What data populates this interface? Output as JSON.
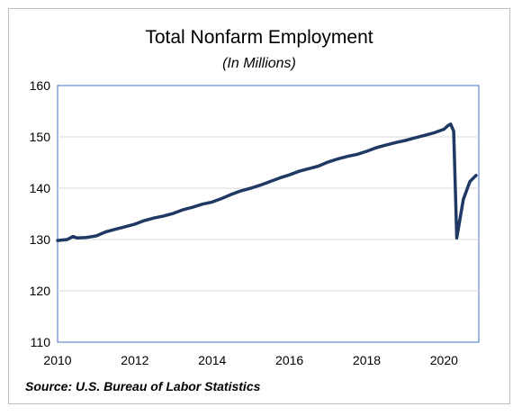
{
  "chart_data": {
    "type": "line",
    "title": "Total Nonfarm Employment",
    "subtitle": "(In Millions)",
    "xlabel": "",
    "ylabel": "",
    "xlim": [
      2010,
      2020.9
    ],
    "ylim": [
      110,
      160
    ],
    "x_ticks": [
      2010,
      2012,
      2014,
      2016,
      2018,
      2020
    ],
    "y_ticks": [
      110,
      120,
      130,
      140,
      150,
      160
    ],
    "grid": "horizontal",
    "line_color": "#203864",
    "series": [
      {
        "x": [
          2010.0,
          2010.25,
          2010.4,
          2010.5,
          2010.75,
          2011.0,
          2011.25,
          2011.5,
          2011.75,
          2012.0,
          2012.25,
          2012.5,
          2012.75,
          2013.0,
          2013.25,
          2013.5,
          2013.75,
          2014.0,
          2014.25,
          2014.5,
          2014.75,
          2015.0,
          2015.25,
          2015.5,
          2015.75,
          2016.0,
          2016.25,
          2016.5,
          2016.75,
          2017.0,
          2017.25,
          2017.5,
          2017.75,
          2018.0,
          2018.25,
          2018.5,
          2018.75,
          2019.0,
          2019.25,
          2019.5,
          2019.75,
          2020.0,
          2020.1,
          2020.17,
          2020.25,
          2020.33,
          2020.5,
          2020.67,
          2020.83
        ],
        "y": [
          129.8,
          130.0,
          130.6,
          130.3,
          130.4,
          130.7,
          131.5,
          132.0,
          132.5,
          133.0,
          133.7,
          134.2,
          134.6,
          135.1,
          135.8,
          136.3,
          136.9,
          137.3,
          138.0,
          138.8,
          139.5,
          140.0,
          140.6,
          141.3,
          142.0,
          142.6,
          143.3,
          143.8,
          144.3,
          145.1,
          145.7,
          146.2,
          146.6,
          147.2,
          147.9,
          148.4,
          148.9,
          149.3,
          149.8,
          150.3,
          150.8,
          151.5,
          152.2,
          152.5,
          151.1,
          130.3,
          137.8,
          141.3,
          142.5
        ]
      }
    ]
  },
  "source_note": "Source: U.S. Bureau of Labor Statistics"
}
